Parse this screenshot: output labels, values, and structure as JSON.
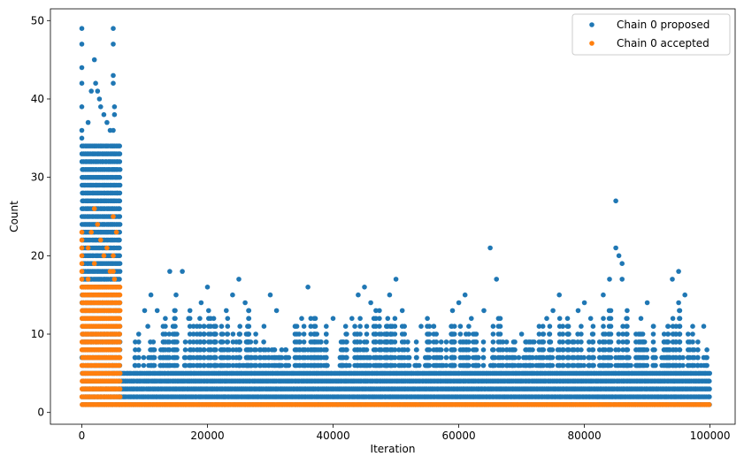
{
  "chart_data": {
    "type": "scatter",
    "title": "",
    "xlabel": "Iteration",
    "ylabel": "Count",
    "xlim": [
      -5000,
      104000
    ],
    "ylim": [
      -1.5,
      51.5
    ],
    "x_ticks": [
      0,
      20000,
      40000,
      60000,
      80000,
      100000
    ],
    "y_ticks": [
      0,
      10,
      20,
      30,
      40,
      50
    ],
    "grid": false,
    "legend": "top-right",
    "series": [
      {
        "name": "Chain 0 proposed",
        "color": "#1f77b4",
        "bands": [
          {
            "x": [
              0,
              6000
            ],
            "y_min": 1,
            "y_max": 34
          },
          {
            "x": [
              6000,
              100000
            ],
            "y_min": 1,
            "y_max": 5
          }
        ],
        "points": [
          [
            0,
            49
          ],
          [
            0,
            47
          ],
          [
            0,
            44
          ],
          [
            0,
            42
          ],
          [
            0,
            39
          ],
          [
            0,
            36
          ],
          [
            0,
            35
          ],
          [
            1000,
            37
          ],
          [
            1500,
            41
          ],
          [
            2000,
            45
          ],
          [
            2200,
            42
          ],
          [
            2500,
            41
          ],
          [
            2800,
            40
          ],
          [
            3000,
            39
          ],
          [
            3500,
            38
          ],
          [
            4000,
            37
          ],
          [
            4500,
            36
          ],
          [
            5000,
            49
          ],
          [
            5000,
            47
          ],
          [
            5000,
            43
          ],
          [
            5000,
            42
          ],
          [
            5200,
            39
          ],
          [
            5200,
            38
          ],
          [
            5000,
            36
          ],
          [
            10000,
            13
          ],
          [
            11000,
            15
          ],
          [
            10500,
            11
          ],
          [
            12000,
            13
          ],
          [
            14000,
            18
          ],
          [
            16000,
            18
          ],
          [
            15000,
            15
          ],
          [
            17000,
            12
          ],
          [
            20000,
            16
          ],
          [
            19000,
            14
          ],
          [
            21000,
            12
          ],
          [
            25000,
            17
          ],
          [
            24000,
            15
          ],
          [
            26000,
            14
          ],
          [
            23000,
            13
          ],
          [
            30000,
            15
          ],
          [
            31000,
            13
          ],
          [
            29000,
            11
          ],
          [
            35000,
            12
          ],
          [
            36000,
            16
          ],
          [
            34000,
            11
          ],
          [
            40000,
            12
          ],
          [
            42000,
            11
          ],
          [
            45000,
            16
          ],
          [
            44000,
            15
          ],
          [
            46000,
            14
          ],
          [
            43000,
            12
          ],
          [
            50000,
            17
          ],
          [
            49000,
            15
          ],
          [
            51000,
            13
          ],
          [
            55000,
            12
          ],
          [
            54000,
            11
          ],
          [
            56000,
            11
          ],
          [
            60000,
            14
          ],
          [
            61000,
            15
          ],
          [
            59000,
            13
          ],
          [
            62000,
            12
          ],
          [
            65000,
            21
          ],
          [
            66000,
            17
          ],
          [
            64000,
            13
          ],
          [
            70000,
            10
          ],
          [
            72000,
            9
          ],
          [
            75000,
            13
          ],
          [
            76000,
            15
          ],
          [
            74000,
            12
          ],
          [
            80000,
            14
          ],
          [
            79000,
            13
          ],
          [
            81000,
            12
          ],
          [
            85000,
            27
          ],
          [
            85000,
            21
          ],
          [
            85500,
            20
          ],
          [
            86000,
            19
          ],
          [
            84000,
            17
          ],
          [
            86000,
            17
          ],
          [
            83000,
            15
          ],
          [
            90000,
            14
          ],
          [
            89000,
            12
          ],
          [
            91000,
            11
          ],
          [
            95000,
            18
          ],
          [
            94000,
            17
          ],
          [
            96000,
            15
          ],
          [
            95000,
            14
          ],
          [
            99000,
            11
          ],
          [
            99000,
            7
          ],
          [
            98000,
            6
          ]
        ],
        "peaks": [
          [
            10000,
            10
          ],
          [
            12000,
            9
          ],
          [
            14000,
            12
          ],
          [
            16000,
            13
          ],
          [
            18000,
            11
          ],
          [
            20000,
            13
          ],
          [
            22000,
            11
          ],
          [
            24000,
            12
          ],
          [
            26000,
            13
          ],
          [
            28000,
            10
          ],
          [
            30000,
            12
          ],
          [
            32000,
            9
          ],
          [
            34000,
            11
          ],
          [
            36000,
            12
          ],
          [
            38000,
            10
          ],
          [
            40000,
            11
          ],
          [
            42000,
            10
          ],
          [
            44000,
            12
          ],
          [
            46000,
            13
          ],
          [
            48000,
            12
          ],
          [
            50000,
            12
          ],
          [
            52000,
            11
          ],
          [
            54000,
            10
          ],
          [
            56000,
            11
          ],
          [
            58000,
            10
          ],
          [
            60000,
            11
          ],
          [
            62000,
            11
          ],
          [
            64000,
            10
          ],
          [
            66000,
            12
          ],
          [
            68000,
            9
          ],
          [
            70000,
            9
          ],
          [
            72000,
            9
          ],
          [
            74000,
            11
          ],
          [
            76000,
            12
          ],
          [
            78000,
            11
          ],
          [
            80000,
            12
          ],
          [
            82000,
            10
          ],
          [
            84000,
            13
          ],
          [
            86000,
            14
          ],
          [
            88000,
            10
          ],
          [
            90000,
            11
          ],
          [
            92000,
            10
          ],
          [
            94000,
            12
          ],
          [
            96000,
            13
          ],
          [
            98000,
            9
          ]
        ]
      },
      {
        "name": "Chain 0 accepted",
        "color": "#ff7f0e",
        "bands": [
          {
            "x": [
              0,
              6000
            ],
            "y_min": 1,
            "y_max": 16
          },
          {
            "x": [
              6000,
              100000
            ],
            "y_min": 1,
            "y_max": 1
          }
        ],
        "points": [
          [
            0,
            23
          ],
          [
            0,
            22
          ],
          [
            0,
            21
          ],
          [
            0,
            20
          ],
          [
            0,
            19
          ],
          [
            0,
            18
          ],
          [
            0,
            17
          ],
          [
            2000,
            26
          ],
          [
            2500,
            24
          ],
          [
            1500,
            23
          ],
          [
            3000,
            22
          ],
          [
            1000,
            21
          ],
          [
            4000,
            21
          ],
          [
            3500,
            20
          ],
          [
            2000,
            19
          ],
          [
            4500,
            18
          ],
          [
            1000,
            17
          ],
          [
            5000,
            25
          ],
          [
            5500,
            23
          ],
          [
            5000,
            20
          ],
          [
            5000,
            18
          ],
          [
            5200,
            17
          ]
        ]
      }
    ]
  }
}
